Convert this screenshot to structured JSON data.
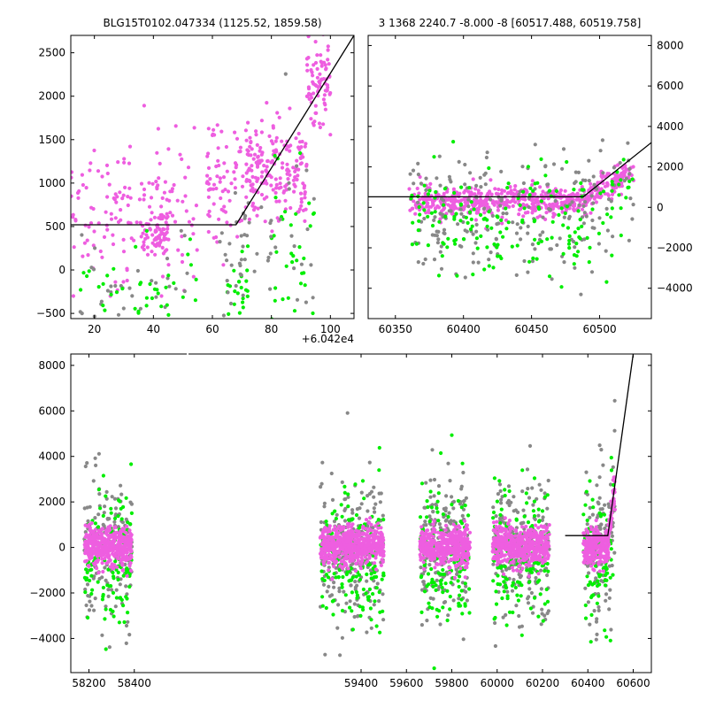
{
  "colors": {
    "magenta": "#ee5ee0",
    "green": "#00ee00",
    "gray": "#888888",
    "line": "#000000"
  },
  "chart_data": [
    {
      "id": "top_left",
      "type": "scatter",
      "title": "BLG15T0102.047334 (1125.52, 1859.58)",
      "offset_text": "+6.042e4",
      "xlim": [
        12,
        108
      ],
      "ylim": [
        -560,
        2700
      ],
      "xticks": [
        20,
        40,
        60,
        80,
        100
      ],
      "yticks": [
        -500,
        0,
        500,
        1000,
        1500,
        2000,
        2500
      ],
      "ytick_side": "left",
      "model_line": [
        [
          12,
          520
        ],
        [
          68,
          520
        ],
        [
          108,
          2700
        ]
      ],
      "clusters": [
        {
          "color": "magenta",
          "count": 160,
          "x": [
            12,
            55
          ],
          "ymean": 700,
          "ysd": 400,
          "ymin": -300,
          "ymax": 2500
        },
        {
          "color": "magenta",
          "count": 60,
          "x": [
            35,
            45
          ],
          "ymean": 420,
          "ysd": 120
        },
        {
          "color": "gray",
          "count": 40,
          "x": [
            15,
            55
          ],
          "ymean": -150,
          "ysd": 400
        },
        {
          "color": "green",
          "count": 45,
          "x": [
            15,
            55
          ],
          "ymean": -250,
          "ysd": 250
        },
        {
          "color": "magenta",
          "count": 70,
          "x": [
            58,
            70
          ],
          "ymean": 1000,
          "ysd": 350
        },
        {
          "color": "green",
          "count": 25,
          "x": [
            65,
            72
          ],
          "ymean": -250,
          "ysd": 250
        },
        {
          "color": "gray",
          "count": 30,
          "x": [
            62,
            75
          ],
          "ymean": 150,
          "ysd": 500
        },
        {
          "color": "magenta",
          "count": 200,
          "x": [
            70,
            92
          ],
          "ymean": 1150,
          "ysd": 280
        },
        {
          "color": "magenta",
          "count": 80,
          "x": [
            92,
            100
          ],
          "ymean": 2150,
          "ysd": 280
        },
        {
          "color": "green",
          "count": 35,
          "x": [
            80,
            95
          ],
          "ymean": 300,
          "ysd": 500
        },
        {
          "color": "gray",
          "count": 30,
          "x": [
            70,
            95
          ],
          "ymean": 350,
          "ysd": 600
        }
      ]
    },
    {
      "id": "top_right",
      "type": "scatter",
      "title": "3 1368 2240.7 -8.000 -8 [60517.488, 60519.758]",
      "xlim": [
        60330,
        60538
      ],
      "ylim": [
        -5500,
        8500
      ],
      "xticks": [
        60350,
        60400,
        60450,
        60500
      ],
      "yticks": [
        -4000,
        -2000,
        0,
        2000,
        4000,
        6000,
        8000
      ],
      "ytick_side": "right",
      "model_line": [
        [
          60330,
          520
        ],
        [
          60488,
          520
        ],
        [
          60538,
          3200
        ]
      ],
      "segments": [
        [
          60360,
          60525
        ]
      ],
      "bands": [
        {
          "color": "magenta",
          "count": 600,
          "ymean": 300,
          "ysd": 350
        },
        {
          "color": "gray",
          "count": 220,
          "ymean": -300,
          "ysd": 1500
        },
        {
          "color": "green",
          "count": 180,
          "ymean": -600,
          "ysd": 1200
        }
      ]
    },
    {
      "id": "bottom",
      "type": "scatter",
      "xlim": [
        58120,
        60680
      ],
      "ylim": [
        -5500,
        8500
      ],
      "xticks": [
        58200,
        58400,
        59400,
        59600,
        59800,
        60000,
        60200,
        60400,
        60600
      ],
      "yticks": [
        -4000,
        -2000,
        0,
        2000,
        4000,
        6000,
        8000
      ],
      "ytick_side": "left",
      "model_line": [
        [
          60300,
          520
        ],
        [
          60488,
          520
        ],
        [
          60600,
          8500
        ]
      ],
      "segments": [
        [
          58180,
          58390
        ],
        [
          59220,
          59500
        ],
        [
          59660,
          59880
        ],
        [
          59980,
          60230
        ],
        [
          60380,
          60520
        ]
      ],
      "bands": [
        {
          "color": "gray",
          "count": 900,
          "ymean": -100,
          "ysd": 1600
        },
        {
          "color": "green",
          "count": 700,
          "ymean": -500,
          "ysd": 1500
        },
        {
          "color": "magenta",
          "count": 2200,
          "ymean": 50,
          "ysd": 420
        }
      ]
    }
  ]
}
